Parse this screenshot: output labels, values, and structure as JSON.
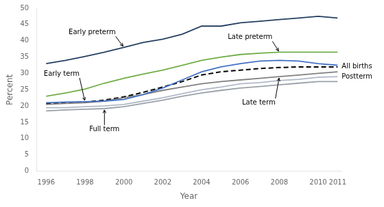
{
  "chart_data": {
    "type": "line",
    "x": [
      1996,
      1997,
      1998,
      1999,
      2000,
      2001,
      2002,
      2003,
      2004,
      2005,
      2006,
      2007,
      2008,
      2009,
      2010,
      2011
    ],
    "series": [
      {
        "name": "Early preterm",
        "color": "#243f60",
        "line_style": "solid",
        "values": [
          33.0,
          34.0,
          35.2,
          36.5,
          38.0,
          39.5,
          40.5,
          42.0,
          44.5,
          44.5,
          45.5,
          46.0,
          46.5,
          47.0,
          47.5,
          47.0
        ]
      },
      {
        "name": "Late preterm",
        "color": "#70ad47",
        "line_style": "solid",
        "values": [
          23.0,
          24.0,
          25.2,
          27.0,
          28.5,
          29.8,
          31.0,
          32.5,
          34.0,
          35.0,
          35.8,
          36.2,
          36.5,
          36.5,
          36.5,
          36.5
        ]
      },
      {
        "name": "Early term",
        "color": "#4472c4",
        "line_style": "solid",
        "values": [
          21.0,
          21.2,
          21.3,
          21.5,
          22.0,
          23.5,
          25.5,
          28.0,
          30.5,
          32.0,
          33.0,
          33.8,
          34.0,
          33.8,
          33.0,
          32.5
        ]
      },
      {
        "name": "Late term",
        "color": "#808080",
        "line_style": "solid",
        "values": [
          20.5,
          20.8,
          21.0,
          21.5,
          22.5,
          23.5,
          24.8,
          25.8,
          26.8,
          27.5,
          28.0,
          28.5,
          29.0,
          29.5,
          30.0,
          30.5
        ]
      },
      {
        "name": "Postterm",
        "color": "#b0b8c8",
        "line_style": "solid",
        "values": [
          19.5,
          19.5,
          19.8,
          20.0,
          20.5,
          21.5,
          22.5,
          23.8,
          25.0,
          25.8,
          26.8,
          27.2,
          27.8,
          28.2,
          28.8,
          29.0
        ]
      },
      {
        "name": "Full term",
        "color": "#9aa0a8",
        "line_style": "solid",
        "values": [
          18.5,
          18.8,
          19.0,
          19.2,
          19.8,
          20.8,
          21.8,
          23.0,
          24.0,
          24.8,
          25.5,
          26.0,
          26.5,
          27.0,
          27.5,
          27.5
        ]
      },
      {
        "name": "All births",
        "color": "#000000",
        "line_style": "dashed",
        "values": [
          20.7,
          21.0,
          21.2,
          21.8,
          22.8,
          24.2,
          25.8,
          27.5,
          29.5,
          30.5,
          31.0,
          31.5,
          31.8,
          32.0,
          32.0,
          32.0
        ]
      }
    ],
    "xlabel": "Year",
    "ylabel": "Percent",
    "xlim": [
      1995.5,
      2011.2
    ],
    "xticks": [
      1996,
      1998,
      2000,
      2002,
      2004,
      2006,
      2008,
      2010,
      2011
    ],
    "ylim": [
      0,
      50
    ],
    "yticks": [
      0,
      5,
      10,
      15,
      20,
      25,
      30,
      35,
      40,
      45,
      50
    ],
    "grid": false
  }
}
